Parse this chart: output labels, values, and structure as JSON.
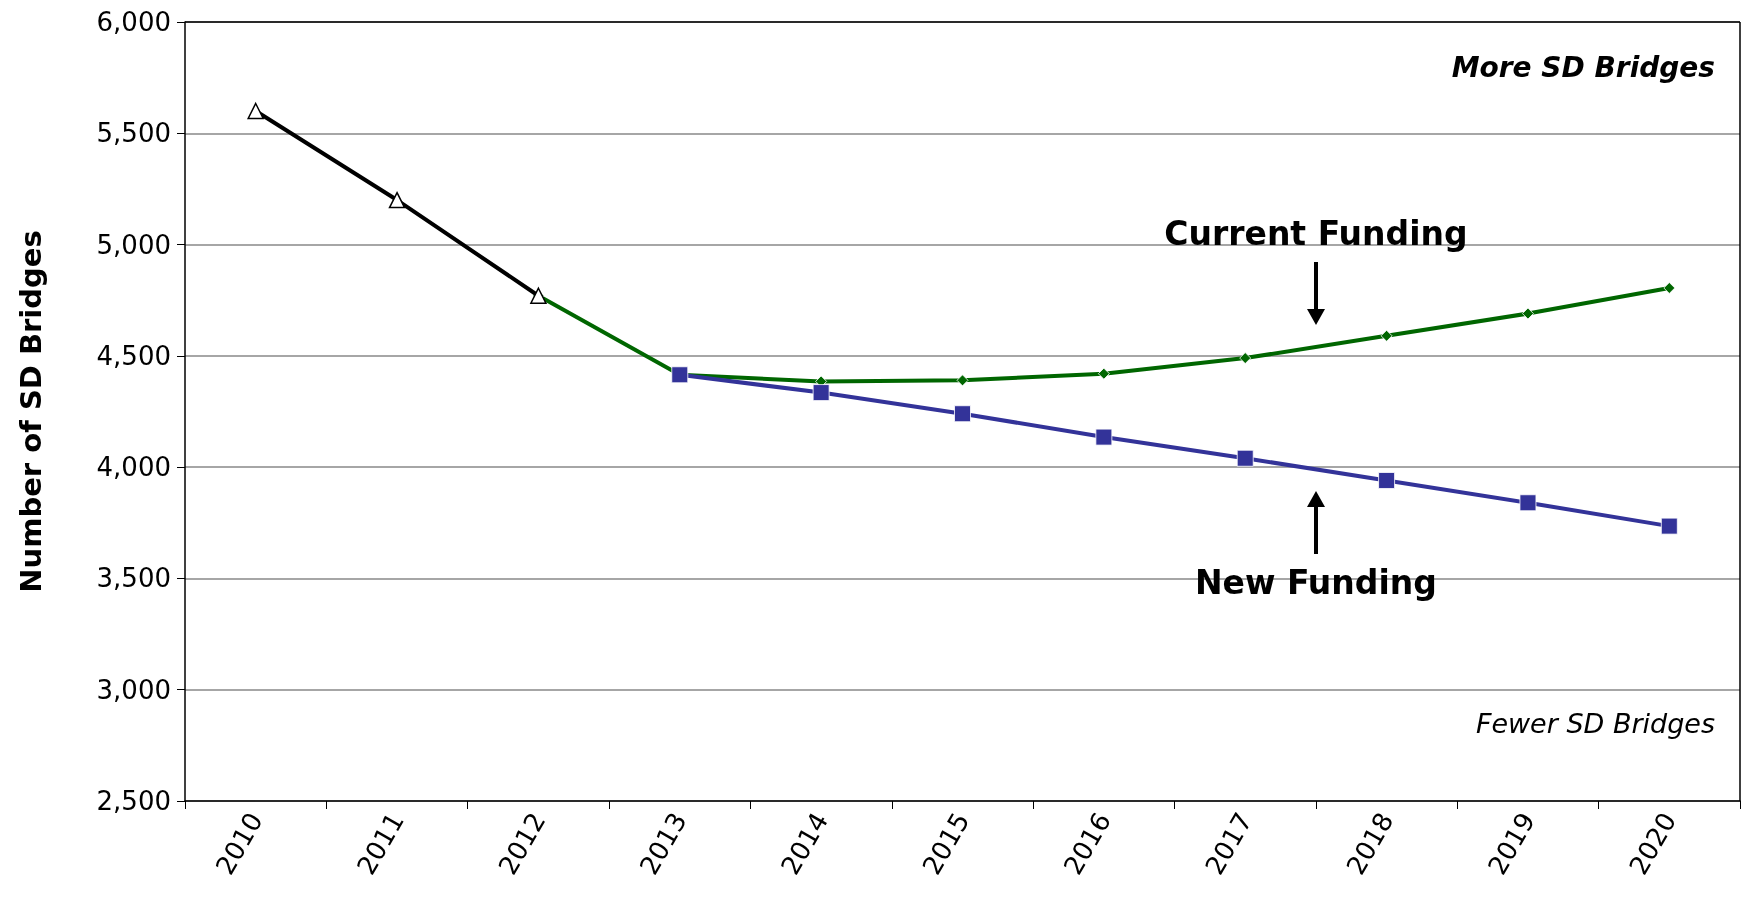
{
  "chart_data": {
    "type": "line",
    "ylabel": "Number of SD Bridges",
    "categories": [
      "2010",
      "2011",
      "2012",
      "2013",
      "2014",
      "2015",
      "2016",
      "2017",
      "2018",
      "2019",
      "2020"
    ],
    "series": [
      {
        "color": "#000000",
        "marker": "triangle",
        "values": [
          5600,
          5200,
          4770,
          null,
          null,
          null,
          null,
          null,
          null,
          null,
          null
        ]
      },
      {
        "name": "Current Funding",
        "color": "#006600",
        "marker": "diamond",
        "values": [
          null,
          null,
          4770,
          4415,
          4385,
          4390,
          4420,
          4490,
          4590,
          4690,
          4805
        ]
      },
      {
        "name": "New Funding",
        "color": "#333399",
        "marker": "square",
        "values": [
          null,
          null,
          null,
          4415,
          4335,
          4240,
          4135,
          4040,
          3940,
          3840,
          3735
        ]
      }
    ],
    "ylim": [
      2500,
      6000
    ],
    "yticks": [
      {
        "value": 2500,
        "label": "2,500"
      },
      {
        "value": 3000,
        "label": "3,000"
      },
      {
        "value": 3500,
        "label": "3,500"
      },
      {
        "value": 4000,
        "label": "4,000"
      },
      {
        "value": 4500,
        "label": "4,500"
      },
      {
        "value": 5000,
        "label": "5,000"
      },
      {
        "value": 5500,
        "label": "5,500"
      },
      {
        "value": 6000,
        "label": "6,000"
      }
    ],
    "grid": "y",
    "annotations": [
      "More SD Bridges",
      "Fewer SD Bridges"
    ]
  }
}
